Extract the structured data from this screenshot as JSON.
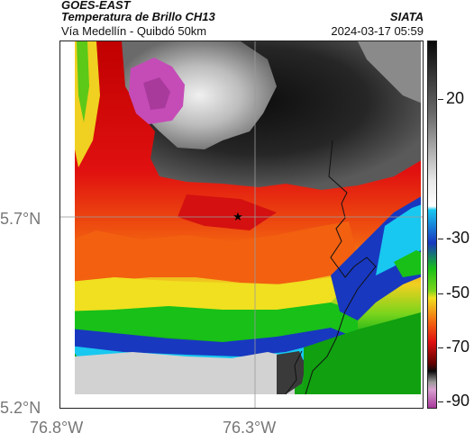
{
  "header": {
    "source": "GOES-EAST",
    "product": "Temperatura de Brillo CH13",
    "region": "Vía Medellín - Quibdó 50km",
    "org": "SIATA",
    "timestamp": "2024-03-17 05:59"
  },
  "axes": {
    "lat_labels": [
      "5.7°N",
      "5.2°N"
    ],
    "lon_labels": [
      "76.8°W",
      "76.3°W"
    ]
  },
  "colorbar": {
    "labels": [
      "20",
      "-30",
      "-50",
      "-70",
      "-90"
    ]
  },
  "map": {
    "marker_icon": "star-icon",
    "gridlines": [
      "5.7°N",
      "76.3°W"
    ],
    "colors": {
      "magenta": "#c54bb7",
      "black": "#1a1a1a",
      "gray": "#9c9c9c",
      "red": "#e01010",
      "orange": "#f06a10",
      "yellow": "#f0e020",
      "green": "#18c018",
      "cyan": "#18c8f0",
      "blue": "#1838c0",
      "white_cloud": "#d8d8d8"
    }
  }
}
